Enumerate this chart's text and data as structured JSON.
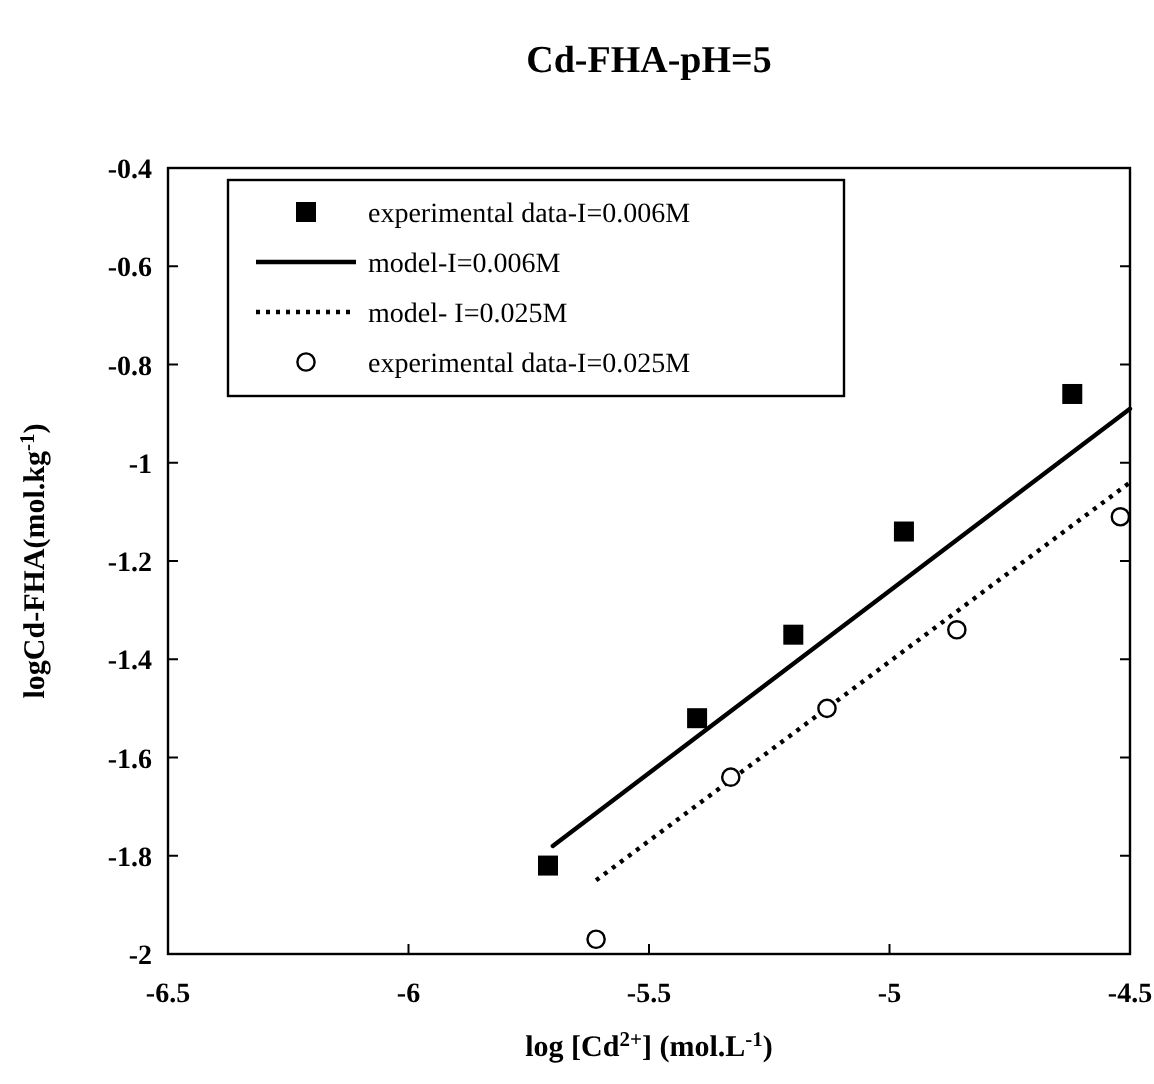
{
  "chart_data": {
    "type": "scatter",
    "title": "Cd-FHA-pH=5",
    "xlabel": "log [Cd$^{2+}$] (mol.L$^{-1}$)",
    "ylabel": "logCd-FHA(mol.kg$^{-1}$)",
    "xlim": [
      -6.5,
      -4.5
    ],
    "xticks": [
      -6.5,
      -6,
      -5.5,
      -5,
      -4.5
    ],
    "ylim": [
      -2,
      -0.4
    ],
    "yticks": [
      -2,
      -1.8,
      -1.6,
      -1.4,
      -1.2,
      -1,
      -0.8,
      -0.6,
      -0.4
    ],
    "grid": false,
    "legend": "top left",
    "series": [
      {
        "name": "experimental data-I=0.006M",
        "marker": "square",
        "color": "#000000",
        "x": [
          -5.71,
          -5.4,
          -5.2,
          -4.97,
          -4.62
        ],
        "values": [
          -1.82,
          -1.52,
          -1.35,
          -1.14,
          -0.86
        ]
      },
      {
        "name": "model-I=0.006M",
        "type": "line",
        "marker": "none",
        "line_style": "solid",
        "color": "#000000",
        "x": [
          -5.7,
          -4.5
        ],
        "values": [
          -1.78,
          -0.89
        ]
      },
      {
        "name": "model- I=0.025M",
        "type": "line",
        "marker": "none",
        "line_style": "dotted",
        "color": "#000000",
        "x": [
          -5.61,
          -4.5
        ],
        "values": [
          -1.85,
          -1.04
        ]
      },
      {
        "name": "experimental data-I=0.025M",
        "marker": "circle",
        "color": "#000000",
        "x": [
          -5.61,
          -5.33,
          -5.13,
          -4.86,
          -4.52
        ],
        "values": [
          -1.97,
          -1.64,
          -1.5,
          -1.34,
          -1.11
        ]
      }
    ]
  }
}
